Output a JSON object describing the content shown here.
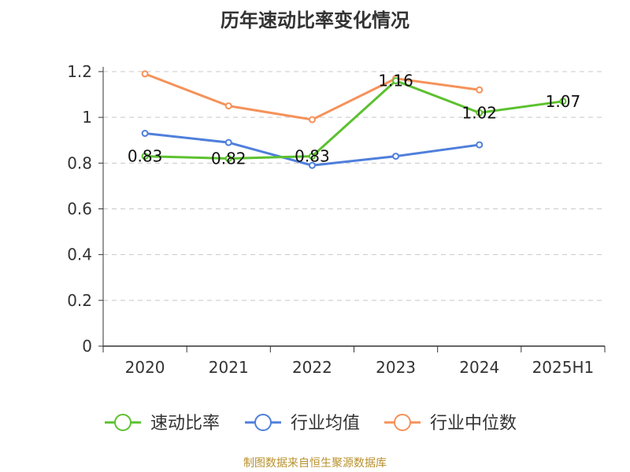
{
  "chart_data": {
    "type": "line",
    "title": "历年速动比率变化情况",
    "categories": [
      "2020",
      "2021",
      "2022",
      "2023",
      "2024",
      "2025H1"
    ],
    "ylim": [
      0,
      1.2
    ],
    "yticks": [
      "0",
      "0.2",
      "0.4",
      "0.6",
      "0.8",
      "1",
      "1.2"
    ],
    "grid": true,
    "legend_position": "bottom",
    "series": [
      {
        "name": "速动比率",
        "color": "#5cc130",
        "values": [
          0.83,
          0.82,
          0.83,
          1.16,
          1.02,
          1.07
        ],
        "labels": [
          "0.83",
          "0.82",
          "0.83",
          "1.16",
          "1.02",
          "1.07"
        ]
      },
      {
        "name": "行业均值",
        "color": "#4f7fdb",
        "values": [
          0.93,
          0.89,
          0.79,
          0.83,
          0.88,
          null
        ]
      },
      {
        "name": "行业中位数",
        "color": "#f5925a",
        "values": [
          1.19,
          1.05,
          0.99,
          1.17,
          1.12,
          null
        ]
      }
    ]
  },
  "footer": {
    "source": "制图数据来自恒生聚源数据库"
  }
}
